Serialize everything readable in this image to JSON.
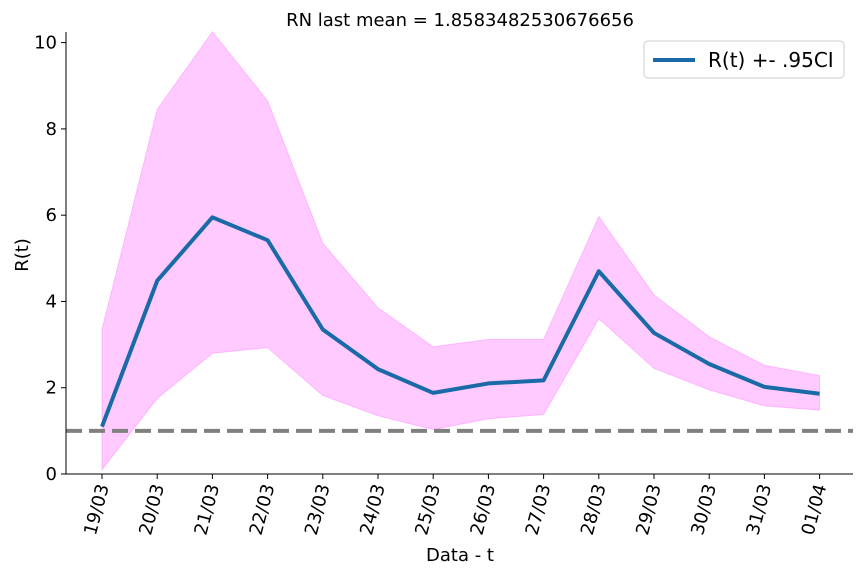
{
  "chart_data": {
    "type": "line",
    "title": "RN last mean = 1.8583482530676656",
    "xlabel": "Data - t",
    "ylabel": "R(t)",
    "categories": [
      "19/03",
      "20/03",
      "21/03",
      "22/03",
      "23/03",
      "24/03",
      "25/03",
      "26/03",
      "27/03",
      "28/03",
      "29/03",
      "30/03",
      "31/03",
      "01/04"
    ],
    "series": [
      {
        "name": "R(t) +- .95CI",
        "color": "#1a6aa8",
        "values": [
          1.1,
          4.48,
          5.95,
          5.42,
          3.35,
          2.43,
          1.88,
          2.1,
          2.17,
          4.7,
          3.27,
          2.55,
          2.02,
          1.86
        ]
      }
    ],
    "ci_band": {
      "color": "#ff66ff",
      "lower": [
        0.1,
        1.75,
        2.8,
        2.93,
        1.82,
        1.35,
        1.03,
        1.28,
        1.38,
        3.6,
        2.45,
        1.95,
        1.58,
        1.48
      ],
      "upper": [
        3.35,
        8.45,
        10.25,
        8.65,
        5.35,
        3.85,
        2.95,
        3.12,
        3.12,
        5.97,
        4.15,
        3.18,
        2.52,
        2.28
      ]
    },
    "reference_line": {
      "y": 1,
      "color": "#808080",
      "style": "dashed"
    },
    "ylim": [
      0,
      10.2
    ],
    "yticks": [
      "0",
      "2",
      "4",
      "6",
      "8",
      "10"
    ],
    "grid": false,
    "legend_position": "top-right"
  }
}
